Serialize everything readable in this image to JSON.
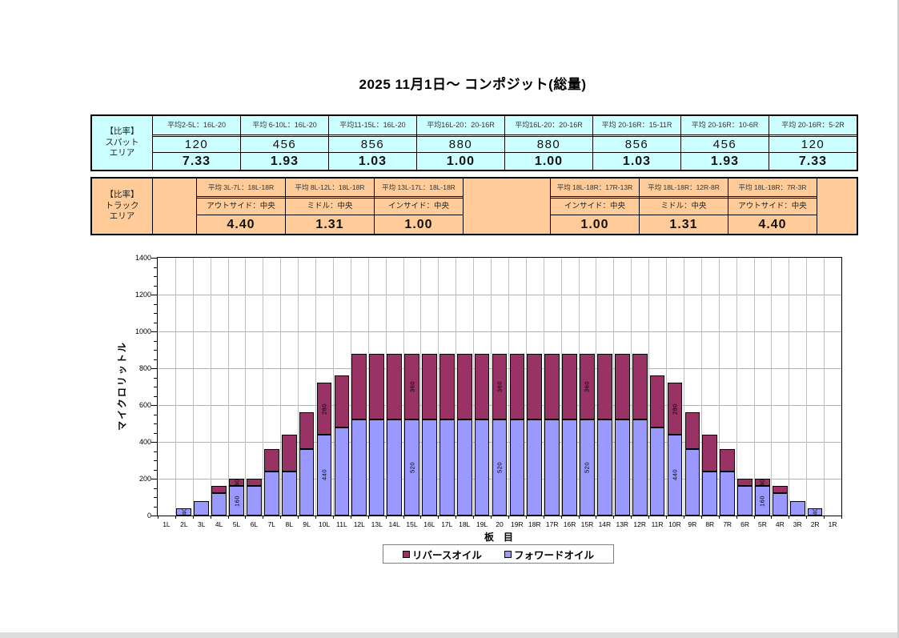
{
  "title": "2025 11月1日～ コンポジット(総量)",
  "tables": {
    "spat": {
      "label": "【比率】\nスパット\nエリア",
      "columns": [
        {
          "header": "平均2-5L：16L-20",
          "average": "120",
          "ratio": "7.33"
        },
        {
          "header": "平均 6-10L：16L-20",
          "average": "456",
          "ratio": "1.93"
        },
        {
          "header": "平均11-15L：16L-20",
          "average": "856",
          "ratio": "1.03"
        },
        {
          "header": "平均16L-20：20-16R",
          "average": "880",
          "ratio": "1.00"
        },
        {
          "header": "平均16L-20：20-16R",
          "average": "880",
          "ratio": "1.00"
        },
        {
          "header": "平均 20-16R：15-11R",
          "average": "856",
          "ratio": "1.03"
        },
        {
          "header": "平均 20-16R：10-6R",
          "average": "456",
          "ratio": "1.93"
        },
        {
          "header": "平均 20-16R：5-2R",
          "average": "120",
          "ratio": "7.33"
        }
      ]
    },
    "track": {
      "label": "【比率】\nトラック\nエリア",
      "left_columns": [
        {
          "header": "平均 3L-7L：18L-18R",
          "zone": "アウトサイド：中央",
          "ratio": "4.40"
        },
        {
          "header": "平均 8L-12L：18L-18R",
          "zone": "ミドル：中央",
          "ratio": "1.31"
        },
        {
          "header": "平均 13L-17L：18L-18R",
          "zone": "インサイド：中央",
          "ratio": "1.00"
        }
      ],
      "right_columns": [
        {
          "header": "平均 18L-18R：17R-13R",
          "zone": "インサイド：中央",
          "ratio": "1.00"
        },
        {
          "header": "平均 18L-18R：12R-8R",
          "zone": "ミドル：中央",
          "ratio": "1.31"
        },
        {
          "header": "平均 18L-18R：7R-3R",
          "zone": "アウトサイド：中央",
          "ratio": "4.40"
        }
      ]
    }
  },
  "chart_data": {
    "type": "bar",
    "stacked": true,
    "title": "",
    "xlabel": "板　目",
    "ylabel": "マイクロリットル",
    "ylim": [
      0,
      1400
    ],
    "ytick_step": 200,
    "ytick_minor_step": 50,
    "grid": true,
    "legend_position": "bottom",
    "categories": [
      "1L",
      "2L",
      "3L",
      "4L",
      "5L",
      "6L",
      "7L",
      "8L",
      "9L",
      "10L",
      "11L",
      "12L",
      "13L",
      "14L",
      "15L",
      "16L",
      "17L",
      "18L",
      "19L",
      "20",
      "19R",
      "18R",
      "17R",
      "16R",
      "15R",
      "14R",
      "13R",
      "12R",
      "11R",
      "10R",
      "9R",
      "8R",
      "7R",
      "6R",
      "5R",
      "4R",
      "3R",
      "2R",
      "1R"
    ],
    "series": [
      {
        "name": "リバースオイル",
        "color": "#993366",
        "stack": "top",
        "values": [
          0,
          0,
          0,
          40,
          40,
          40,
          120,
          200,
          200,
          280,
          280,
          360,
          360,
          360,
          360,
          360,
          360,
          360,
          360,
          360,
          360,
          360,
          360,
          360,
          360,
          360,
          360,
          360,
          280,
          280,
          200,
          200,
          120,
          40,
          40,
          40,
          0,
          0,
          0
        ]
      },
      {
        "name": "フォワードオイル",
        "color": "#9999FF",
        "stack": "bottom",
        "values": [
          0,
          40,
          80,
          120,
          160,
          160,
          240,
          240,
          360,
          440,
          480,
          520,
          520,
          520,
          520,
          520,
          520,
          520,
          520,
          520,
          520,
          520,
          520,
          520,
          520,
          520,
          520,
          520,
          480,
          440,
          360,
          240,
          240,
          160,
          160,
          120,
          80,
          40,
          0
        ]
      }
    ],
    "data_label_categories": [
      "2L",
      "5L",
      "10L",
      "15L",
      "20",
      "15R",
      "10R",
      "5R",
      "2R"
    ]
  },
  "colors": {
    "spat_table_bg": "#CCFFFF",
    "track_table_bg": "#FFCC99",
    "reverse_oil": "#993366",
    "forward_oil": "#9999FF",
    "gridline": "#b3b3b3"
  }
}
